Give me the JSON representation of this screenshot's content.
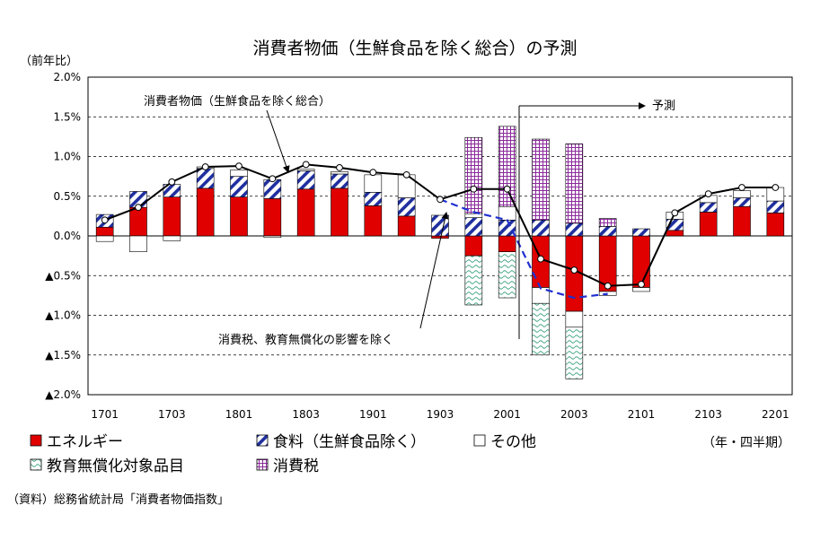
{
  "chart_data": {
    "type": "bar",
    "title": "消費者物価（生鮮食品を除く総合）の予測",
    "ylabel": "（前年比）",
    "xlabel": "（年・四半期）",
    "source": "（資料）総務省統計局「消費者物価指数」",
    "ylim": [
      -2.0,
      2.0
    ],
    "yticks": [
      "2.0%",
      "1.5%",
      "1.0%",
      "0.5%",
      "0.0%",
      "▲0.5%",
      "▲1.0%",
      "▲1.5%",
      "▲2.0%"
    ],
    "xtick_labels": [
      "1701",
      "1703",
      "1801",
      "1803",
      "1901",
      "1903",
      "2001",
      "2003",
      "2101",
      "2103",
      "2201"
    ],
    "categories": [
      "1701",
      "1702",
      "1703",
      "1704",
      "1801",
      "1802",
      "1803",
      "1804",
      "1901",
      "1902",
      "1903",
      "1904",
      "2001",
      "2002",
      "2003",
      "2004",
      "2101",
      "2102",
      "2103",
      "2104",
      "2201"
    ],
    "series": [
      {
        "name": "エネルギー",
        "color": "#e00000",
        "pattern": "solid",
        "values": [
          0.11,
          0.36,
          0.49,
          0.6,
          0.49,
          0.47,
          0.59,
          0.6,
          0.38,
          0.25,
          -0.03,
          -0.25,
          -0.2,
          -0.65,
          -0.95,
          -0.7,
          -0.65,
          0.07,
          0.3,
          0.37,
          0.29
        ]
      },
      {
        "name": "食料（生鮮食品除く）",
        "color": "#1f2f9f",
        "pattern": "diagonal",
        "values": [
          0.16,
          0.2,
          0.16,
          0.25,
          0.26,
          0.24,
          0.23,
          0.18,
          0.17,
          0.23,
          0.26,
          0.23,
          0.2,
          0.2,
          0.16,
          0.12,
          0.09,
          0.14,
          0.12,
          0.11,
          0.15
        ]
      },
      {
        "name": "その他",
        "color": "#ffffff",
        "pattern": "open",
        "values": [
          -0.07,
          -0.2,
          -0.06,
          0.02,
          0.08,
          -0.02,
          0.02,
          0.03,
          0.22,
          0.29,
          0.0,
          0.05,
          0.17,
          -0.2,
          -0.2,
          -0.05,
          -0.05,
          0.09,
          0.09,
          0.09,
          0.17
        ]
      },
      {
        "name": "教育無償化対象品目",
        "color": "#3aa080",
        "pattern": "wave",
        "values": [
          0,
          0,
          0,
          0,
          0,
          0,
          0,
          0,
          0,
          0,
          0,
          -0.62,
          -0.58,
          -0.65,
          -0.65,
          0,
          0,
          0,
          0,
          0,
          0
        ]
      },
      {
        "name": "消費税",
        "color": "#8a2a9a",
        "pattern": "grid",
        "values": [
          0,
          0,
          0,
          0,
          0,
          0,
          0,
          0,
          0,
          0,
          0,
          0.96,
          1.01,
          1.02,
          1.0,
          0.1,
          0,
          0,
          0,
          0,
          0
        ]
      }
    ],
    "lines": [
      {
        "name": "消費者物価（生鮮食品を除く総合）",
        "color": "#000000",
        "style": "solid",
        "values": [
          0.2,
          0.36,
          0.68,
          0.87,
          0.88,
          0.72,
          0.9,
          0.86,
          0.8,
          0.77,
          0.46,
          0.59,
          0.59,
          -0.29,
          -0.43,
          -0.63,
          -0.61,
          0.29,
          0.53,
          0.61,
          0.61
        ]
      },
      {
        "name": "消費税、教育無償化の影響を除く",
        "color": "#1f2fcf",
        "style": "dashed",
        "values": [
          null,
          null,
          null,
          null,
          null,
          null,
          null,
          null,
          null,
          null,
          0.46,
          0.3,
          0.2,
          -0.66,
          -0.78,
          -0.73,
          null,
          null,
          null,
          null,
          null
        ]
      }
    ],
    "annotations": [
      {
        "text": "消費者物価（生鮮食品を除く総合）",
        "target": "1804"
      },
      {
        "text": "消費税、教育無償化の影響を除く",
        "target": "1904"
      },
      {
        "text": "予測",
        "from": "2002"
      }
    ],
    "legend": "bottom",
    "grid": true
  }
}
